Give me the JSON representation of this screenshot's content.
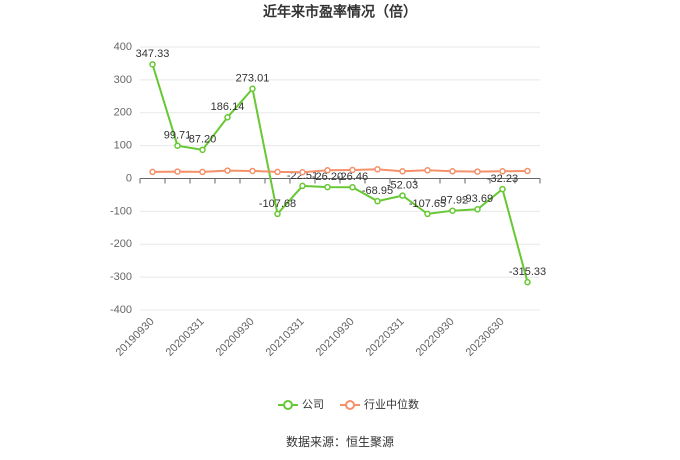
{
  "chart_data": {
    "type": "line",
    "title": "近年来市盈率情况（倍）",
    "source": "数据来源：恒生聚源",
    "categories": [
      "20190930",
      null,
      "20200331",
      null,
      "20200930",
      null,
      "20210331",
      null,
      "20210930",
      null,
      "20220331",
      null,
      "20220930",
      null,
      "20230630",
      null
    ],
    "series": [
      {
        "name": "公司",
        "color": "#66c832",
        "values": [
          347.33,
          99.71,
          87.2,
          186.14,
          273.01,
          -107.68,
          -22.51,
          -26.2,
          -26.46,
          -68.95,
          -52.03,
          -107.65,
          -97.92,
          -93.69,
          -32.23,
          -315.33
        ],
        "value_labels": [
          "347.33",
          "99.71",
          "87.20",
          "186.14",
          "273.01",
          "-107.68",
          "-22.51",
          "-26.20",
          "-26.46",
          "-68.95",
          "-52.03",
          "-107.65",
          "-97.92",
          "-93.69",
          "-32.23",
          "-315.33"
        ]
      },
      {
        "name": "行业中位数",
        "color": "#f4906a",
        "values": [
          20,
          21,
          20,
          24,
          23,
          20,
          19,
          25,
          26,
          28,
          22,
          25,
          22,
          21,
          22,
          23
        ]
      }
    ],
    "ylim": [
      -400,
      400
    ],
    "yticks": [
      -400,
      -300,
      -200,
      -100,
      0,
      100,
      200,
      300,
      400
    ],
    "grid": true
  }
}
